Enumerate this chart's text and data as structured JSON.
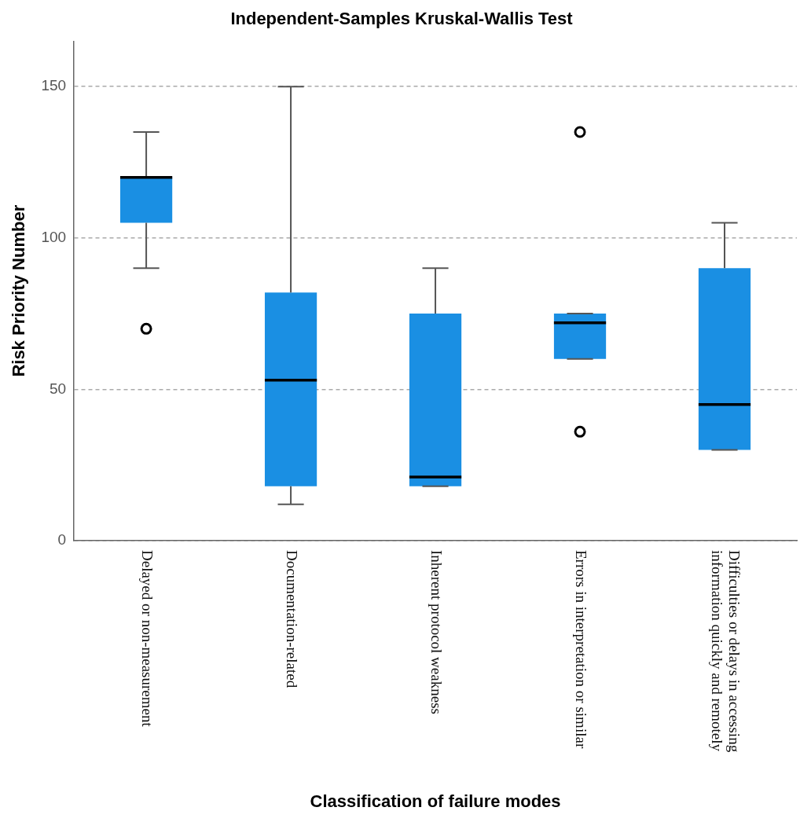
{
  "chart_data": {
    "type": "box",
    "title": "Independent-Samples Kruskal-Wallis Test",
    "xlabel": "Classification of failure modes",
    "ylabel": "Risk Priority Number",
    "categories": [
      "Delayed or non-measurement",
      "Documentation-related",
      "Inherent protocol weakness",
      "Errors in interpretation or similar",
      "Difficulties or delays in accessing information quickly and remotely"
    ],
    "color": "#1a8fe3",
    "boxes": [
      {
        "low": 90,
        "q1": 105,
        "median": 120,
        "q3": 120,
        "high": 135,
        "outliers": [
          70
        ]
      },
      {
        "low": 12,
        "q1": 18,
        "median": 53,
        "q3": 82,
        "high": 150
      },
      {
        "low": 18,
        "q1": 18,
        "median": 21,
        "q3": 75,
        "high": 90
      },
      {
        "low": 60,
        "q1": 60,
        "median": 72,
        "q3": 75,
        "high": 75,
        "outliers": [
          36,
          135
        ]
      },
      {
        "low": 30,
        "q1": 30,
        "median": 45,
        "q3": 90,
        "high": 105
      }
    ],
    "ylim": [
      0,
      165
    ],
    "yticks": [
      0,
      50,
      100,
      150
    ],
    "grid": "y",
    "legend": false
  }
}
